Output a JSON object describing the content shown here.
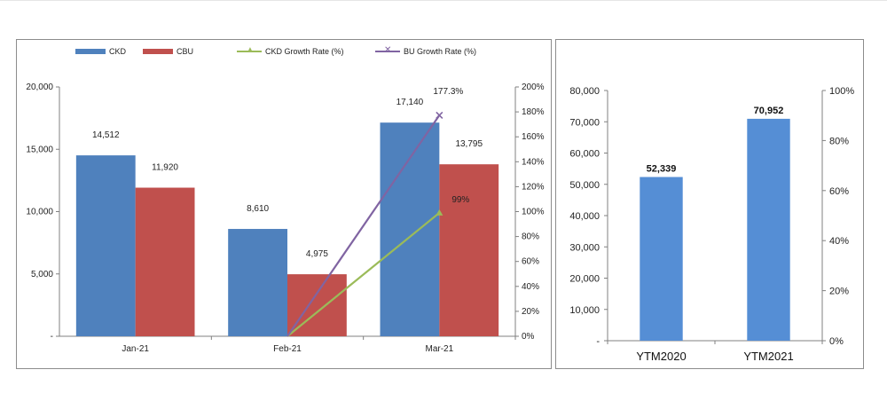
{
  "chart_data": [
    {
      "type": "bar",
      "categories": [
        "Jan-21",
        "Feb-21",
        "Mar-21"
      ],
      "series": [
        {
          "name": "CKD",
          "kind": "bar",
          "axis": "left",
          "values": [
            14512,
            8610,
            17140
          ],
          "labels": [
            "14,512",
            "8,610",
            "17,140"
          ],
          "color": "#4F81BD"
        },
        {
          "name": "CBU",
          "kind": "bar",
          "axis": "left",
          "values": [
            11920,
            4975,
            13795
          ],
          "labels": [
            "11,920",
            "4,975",
            "13,795"
          ],
          "color": "#C0504D"
        },
        {
          "name": "CKD Growth Rate (%)",
          "kind": "line",
          "axis": "right",
          "marker": "triangle",
          "values": [
            null,
            0,
            99
          ],
          "labels": [
            "",
            "",
            "99%"
          ],
          "color": "#9BBB59"
        },
        {
          "name": "BU Growth Rate (%)",
          "kind": "line",
          "axis": "right",
          "marker": "x",
          "values": [
            null,
            0,
            177.3
          ],
          "labels": [
            "",
            "",
            "177.3%"
          ],
          "color": "#8064A2"
        }
      ],
      "ylim": [
        0,
        20000
      ],
      "yticks": [
        "-",
        "5,000",
        "10,000",
        "15,000",
        "20,000"
      ],
      "y2lim": [
        0,
        200
      ],
      "y2ticks": [
        "0%",
        "20%",
        "40%",
        "60%",
        "80%",
        "100%",
        "120%",
        "140%",
        "160%",
        "180%",
        "200%"
      ],
      "legend": "top",
      "grid": false
    },
    {
      "type": "bar",
      "categories": [
        "YTM2020",
        "YTM2021"
      ],
      "series": [
        {
          "name": "",
          "values": [
            52339,
            70952
          ],
          "labels": [
            "52,339",
            "70,952"
          ],
          "color": "#558ED5"
        }
      ],
      "ylim": [
        0,
        80000
      ],
      "yticks": [
        "-",
        "10,000",
        "20,000",
        "30,000",
        "40,000",
        "50,000",
        "60,000",
        "70,000",
        "80,000"
      ],
      "y2lim": [
        0,
        100
      ],
      "y2ticks": [
        "0%",
        "20%",
        "40%",
        "60%",
        "80%",
        "100%"
      ],
      "grid": false
    }
  ]
}
